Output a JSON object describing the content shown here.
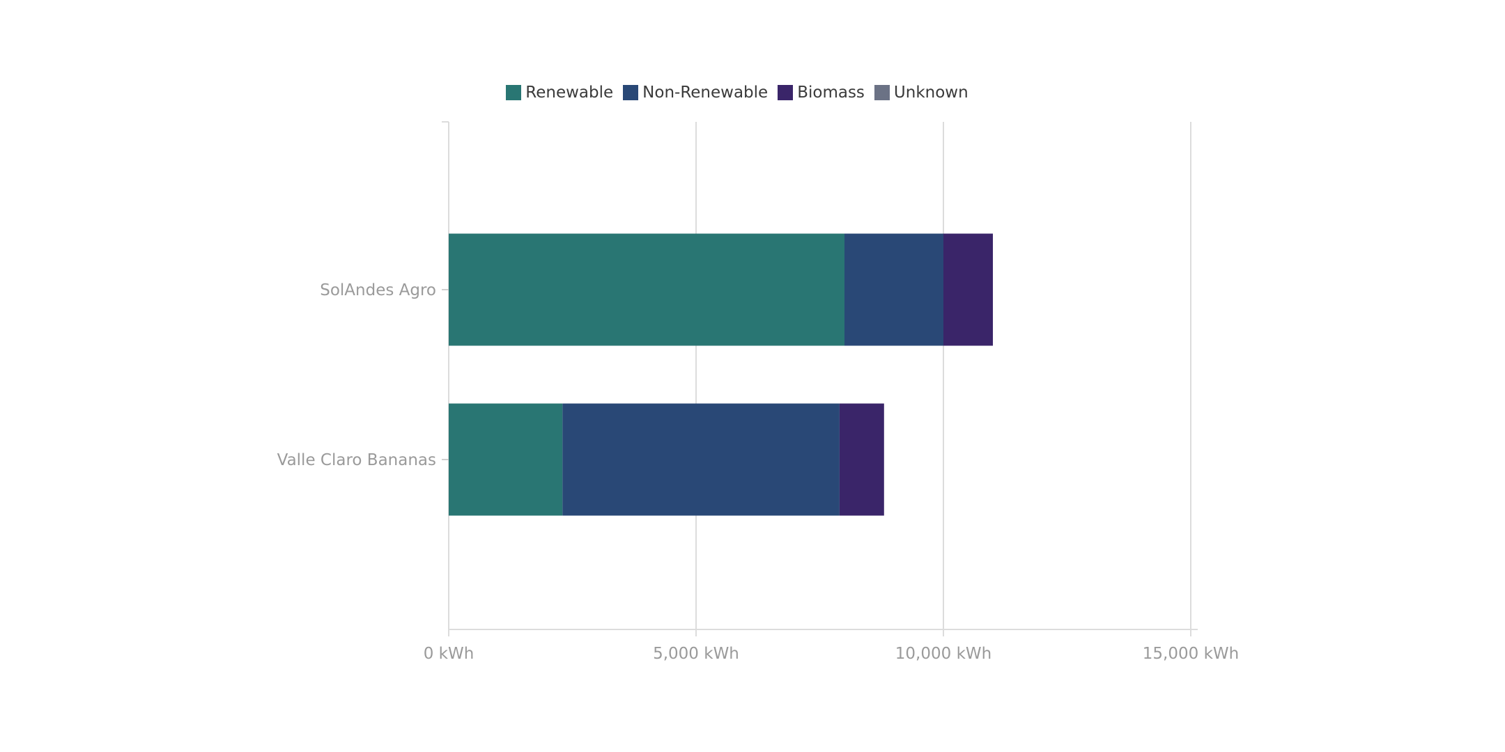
{
  "chart_data": {
    "type": "bar",
    "orientation": "horizontal",
    "stacked": true,
    "categories": [
      "SolAndes Agro",
      "Valle Claro Bananas"
    ],
    "series": [
      {
        "name": "Renewable",
        "color": "#297673",
        "values": [
          8000,
          2300
        ]
      },
      {
        "name": "Non-Renewable",
        "color": "#294876",
        "values": [
          2000,
          5600
        ]
      },
      {
        "name": "Biomass",
        "color": "#3a2569",
        "values": [
          1000,
          900
        ]
      },
      {
        "name": "Unknown",
        "color": "#6b7285",
        "values": [
          0,
          0
        ]
      }
    ],
    "xlim": [
      0,
      15000
    ],
    "xticks": [
      0,
      5000,
      10000,
      15000
    ],
    "xtick_labels": [
      "0 kWh",
      "5,000 kWh",
      "10,000 kWh",
      "15,000 kWh"
    ],
    "title": "",
    "xlabel": "",
    "ylabel": "",
    "grid": true,
    "legend_placement": "top-center"
  }
}
